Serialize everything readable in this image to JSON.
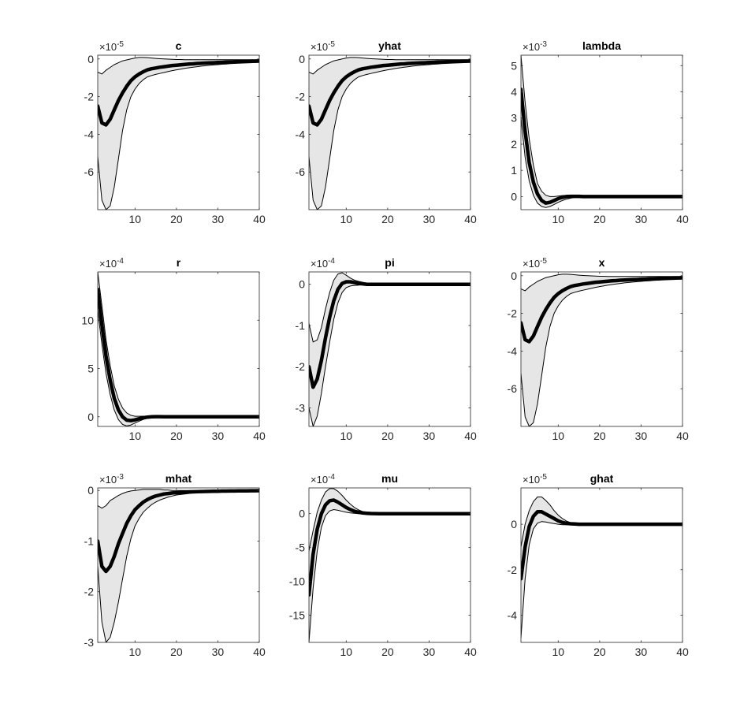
{
  "figure": {
    "background": "#ffffff",
    "axes_color": "#262626",
    "band_fill": "#e6e6e6",
    "bound_color": "#000000",
    "median_color": "#000000"
  },
  "chart_data": [
    {
      "id": "c",
      "type": "line",
      "title": "c",
      "exponent_label": "×10",
      "exponent_power": "-5",
      "scale": 1e-05,
      "xlim": [
        1,
        40
      ],
      "ylim": [
        -8,
        0.2
      ],
      "xticks": [
        10,
        20,
        30,
        40
      ],
      "yticks": [
        -6,
        -4,
        -2,
        0
      ],
      "x_step": 1,
      "median": [
        -2.5,
        -3.4,
        -3.5,
        -3.2,
        -2.7,
        -2.2,
        -1.8,
        -1.45,
        -1.15,
        -0.95,
        -0.8,
        -0.68,
        -0.58,
        -0.52,
        -0.48,
        -0.44,
        -0.41,
        -0.38,
        -0.35,
        -0.33,
        -0.31,
        -0.29,
        -0.27,
        -0.26,
        -0.24,
        -0.23,
        -0.22,
        -0.21,
        -0.2,
        -0.19,
        -0.18,
        -0.17,
        -0.16,
        -0.15,
        -0.14,
        -0.13,
        -0.13,
        -0.12,
        -0.12,
        -0.11
      ],
      "upper": [
        -0.7,
        -0.8,
        -0.6,
        -0.45,
        -0.3,
        -0.2,
        -0.1,
        -0.05,
        0.0,
        0.05,
        0.08,
        0.08,
        0.07,
        0.05,
        0.03,
        0.01,
        0.0,
        -0.01,
        -0.02,
        -0.03,
        -0.03,
        -0.04,
        -0.04,
        -0.04,
        -0.04,
        -0.04,
        -0.04,
        -0.04,
        -0.04,
        -0.04,
        -0.04,
        -0.04,
        -0.04,
        -0.04,
        -0.04,
        -0.04,
        -0.04,
        -0.04,
        -0.04,
        -0.04
      ],
      "lower": [
        -5.2,
        -7.5,
        -8.0,
        -7.8,
        -6.8,
        -5.3,
        -3.8,
        -2.7,
        -2.0,
        -1.6,
        -1.3,
        -1.1,
        -0.95,
        -0.88,
        -0.82,
        -0.77,
        -0.72,
        -0.67,
        -0.62,
        -0.58,
        -0.54,
        -0.5,
        -0.47,
        -0.44,
        -0.41,
        -0.38,
        -0.36,
        -0.34,
        -0.32,
        -0.3,
        -0.28,
        -0.27,
        -0.25,
        -0.24,
        -0.23,
        -0.22,
        -0.21,
        -0.2,
        -0.19,
        -0.18
      ]
    },
    {
      "id": "yhat",
      "type": "line",
      "title": "yhat",
      "exponent_label": "×10",
      "exponent_power": "-5",
      "scale": 1e-05,
      "xlim": [
        1,
        40
      ],
      "ylim": [
        -8,
        0.2
      ],
      "xticks": [
        10,
        20,
        30,
        40
      ],
      "yticks": [
        -6,
        -4,
        -2,
        0
      ],
      "x_step": 1,
      "median": [
        -2.5,
        -3.4,
        -3.5,
        -3.2,
        -2.7,
        -2.2,
        -1.8,
        -1.45,
        -1.15,
        -0.95,
        -0.8,
        -0.68,
        -0.58,
        -0.52,
        -0.48,
        -0.44,
        -0.41,
        -0.38,
        -0.35,
        -0.33,
        -0.31,
        -0.29,
        -0.27,
        -0.26,
        -0.24,
        -0.23,
        -0.22,
        -0.21,
        -0.2,
        -0.19,
        -0.18,
        -0.17,
        -0.16,
        -0.15,
        -0.14,
        -0.13,
        -0.13,
        -0.12,
        -0.12,
        -0.11
      ],
      "upper": [
        -0.7,
        -0.8,
        -0.6,
        -0.45,
        -0.3,
        -0.2,
        -0.1,
        -0.05,
        0.0,
        0.05,
        0.08,
        0.08,
        0.07,
        0.05,
        0.03,
        0.01,
        0.0,
        -0.01,
        -0.02,
        -0.03,
        -0.03,
        -0.04,
        -0.04,
        -0.04,
        -0.04,
        -0.04,
        -0.04,
        -0.04,
        -0.04,
        -0.04,
        -0.04,
        -0.04,
        -0.04,
        -0.04,
        -0.04,
        -0.04,
        -0.04,
        -0.04,
        -0.04,
        -0.04
      ],
      "lower": [
        -5.2,
        -7.5,
        -8.0,
        -7.8,
        -6.8,
        -5.3,
        -3.8,
        -2.7,
        -2.0,
        -1.6,
        -1.3,
        -1.1,
        -0.95,
        -0.88,
        -0.82,
        -0.77,
        -0.72,
        -0.67,
        -0.62,
        -0.58,
        -0.54,
        -0.5,
        -0.47,
        -0.44,
        -0.41,
        -0.38,
        -0.36,
        -0.34,
        -0.32,
        -0.3,
        -0.28,
        -0.27,
        -0.25,
        -0.24,
        -0.23,
        -0.22,
        -0.21,
        -0.2,
        -0.19,
        -0.18
      ]
    },
    {
      "id": "lambda",
      "type": "line",
      "title": "lambda",
      "exponent_label": "×10",
      "exponent_power": "-3",
      "scale": 0.001,
      "xlim": [
        1,
        40
      ],
      "ylim": [
        -0.5,
        5.4
      ],
      "xticks": [
        10,
        20,
        30,
        40
      ],
      "yticks": [
        0,
        1,
        2,
        3,
        4,
        5
      ],
      "x_step": 1,
      "median": [
        4.1,
        2.5,
        1.3,
        0.55,
        0.1,
        -0.15,
        -0.25,
        -0.22,
        -0.15,
        -0.08,
        -0.03,
        0.0,
        0.01,
        0.01,
        0.01,
        0.0,
        0,
        0,
        0,
        0,
        0,
        0,
        0,
        0,
        0,
        0,
        0,
        0,
        0,
        0,
        0,
        0,
        0,
        0,
        0,
        0,
        0,
        0,
        0,
        0
      ],
      "upper": [
        5.4,
        3.6,
        2.2,
        1.2,
        0.5,
        0.2,
        0.05,
        0.0,
        0.0,
        0.02,
        0.04,
        0.05,
        0.05,
        0.04,
        0.03,
        0.02,
        0.01,
        0.0,
        0,
        0,
        0,
        0,
        0,
        0,
        0,
        0,
        0,
        0,
        0,
        0,
        0,
        0,
        0,
        0,
        0,
        0,
        0,
        0,
        0,
        0
      ],
      "lower": [
        3.0,
        1.5,
        0.6,
        0.05,
        -0.25,
        -0.38,
        -0.42,
        -0.38,
        -0.3,
        -0.22,
        -0.15,
        -0.1,
        -0.06,
        -0.03,
        -0.02,
        -0.01,
        0,
        0,
        0,
        0,
        0,
        0,
        0,
        0,
        0,
        0,
        0,
        0,
        0,
        0,
        0,
        0,
        0,
        0,
        0,
        0,
        0,
        0,
        0,
        0
      ]
    },
    {
      "id": "r",
      "type": "line",
      "title": "r",
      "exponent_label": "×10",
      "exponent_power": "-4",
      "scale": 0.0001,
      "xlim": [
        1,
        40
      ],
      "ylim": [
        -1,
        15
      ],
      "xticks": [
        10,
        20,
        30,
        40
      ],
      "yticks": [
        0,
        5,
        10
      ],
      "x_step": 1,
      "median": [
        13.2,
        9.5,
        6.3,
        3.8,
        1.9,
        0.7,
        0.0,
        -0.35,
        -0.4,
        -0.32,
        -0.2,
        -0.1,
        -0.04,
        0.0,
        0.01,
        0.01,
        0,
        0,
        0,
        0,
        0,
        0,
        0,
        0,
        0,
        0,
        0,
        0,
        0,
        0,
        0,
        0,
        0,
        0,
        0,
        0,
        0,
        0,
        0,
        0
      ],
      "upper": [
        15.0,
        11.5,
        8.0,
        5.3,
        3.2,
        1.8,
        0.9,
        0.4,
        0.15,
        0.05,
        0.05,
        0.06,
        0.06,
        0.05,
        0.04,
        0.03,
        0.02,
        0.01,
        0,
        0,
        0,
        0,
        0,
        0,
        0,
        0,
        0,
        0,
        0,
        0,
        0,
        0,
        0,
        0,
        0,
        0,
        0,
        0,
        0,
        0
      ],
      "lower": [
        11.0,
        7.5,
        4.5,
        2.3,
        0.7,
        -0.3,
        -0.8,
        -0.95,
        -0.85,
        -0.65,
        -0.45,
        -0.28,
        -0.15,
        -0.07,
        -0.03,
        -0.01,
        0,
        0,
        0,
        0,
        0,
        0,
        0,
        0,
        0,
        0,
        0,
        0,
        0,
        0,
        0,
        0,
        0,
        0,
        0,
        0,
        0,
        0,
        0,
        0
      ]
    },
    {
      "id": "pi",
      "type": "line",
      "title": "pi",
      "exponent_label": "×10",
      "exponent_power": "-4",
      "scale": 0.0001,
      "xlim": [
        1,
        40
      ],
      "ylim": [
        -3.45,
        0.3
      ],
      "xticks": [
        10,
        20,
        30,
        40
      ],
      "yticks": [
        -3,
        -2,
        -1,
        0
      ],
      "x_step": 1,
      "median": [
        -2.0,
        -2.5,
        -2.3,
        -1.85,
        -1.3,
        -0.8,
        -0.4,
        -0.12,
        0.02,
        0.06,
        0.06,
        0.04,
        0.02,
        0.01,
        0.0,
        0,
        0,
        0,
        0,
        0,
        0,
        0,
        0,
        0,
        0,
        0,
        0,
        0,
        0,
        0,
        0,
        0,
        0,
        0,
        0,
        0,
        0,
        0,
        0,
        0
      ],
      "upper": [
        -0.95,
        -1.4,
        -1.35,
        -1.05,
        -0.6,
        -0.2,
        0.1,
        0.25,
        0.28,
        0.22,
        0.15,
        0.1,
        0.07,
        0.05,
        0.03,
        0.02,
        0.01,
        0,
        0,
        0,
        0,
        0,
        0,
        0,
        0,
        0,
        0,
        0,
        0,
        0,
        0,
        0,
        0,
        0,
        0,
        0,
        0,
        0,
        0,
        0
      ],
      "lower": [
        -3.0,
        -3.45,
        -3.2,
        -2.65,
        -2.0,
        -1.4,
        -0.85,
        -0.45,
        -0.2,
        -0.08,
        -0.04,
        -0.03,
        -0.02,
        -0.01,
        0,
        0,
        0,
        0,
        0,
        0,
        0,
        0,
        0,
        0,
        0,
        0,
        0,
        0,
        0,
        0,
        0,
        0,
        0,
        0,
        0,
        0,
        0,
        0,
        0,
        0
      ]
    },
    {
      "id": "x",
      "type": "line",
      "title": "x",
      "exponent_label": "×10",
      "exponent_power": "-5",
      "scale": 1e-05,
      "xlim": [
        1,
        40
      ],
      "ylim": [
        -8,
        0.2
      ],
      "xticks": [
        10,
        20,
        30,
        40
      ],
      "yticks": [
        -6,
        -4,
        -2,
        0
      ],
      "x_step": 1,
      "median": [
        -2.5,
        -3.4,
        -3.5,
        -3.2,
        -2.7,
        -2.2,
        -1.8,
        -1.45,
        -1.15,
        -0.95,
        -0.8,
        -0.68,
        -0.58,
        -0.52,
        -0.48,
        -0.44,
        -0.41,
        -0.38,
        -0.35,
        -0.33,
        -0.31,
        -0.29,
        -0.27,
        -0.26,
        -0.24,
        -0.23,
        -0.22,
        -0.21,
        -0.2,
        -0.19,
        -0.18,
        -0.17,
        -0.16,
        -0.15,
        -0.14,
        -0.13,
        -0.13,
        -0.12,
        -0.12,
        -0.11
      ],
      "upper": [
        -0.7,
        -0.8,
        -0.6,
        -0.45,
        -0.3,
        -0.2,
        -0.1,
        -0.05,
        0.0,
        0.05,
        0.08,
        0.08,
        0.07,
        0.05,
        0.03,
        0.01,
        0.0,
        -0.01,
        -0.02,
        -0.03,
        -0.03,
        -0.04,
        -0.04,
        -0.04,
        -0.04,
        -0.04,
        -0.04,
        -0.04,
        -0.04,
        -0.04,
        -0.04,
        -0.04,
        -0.04,
        -0.04,
        -0.04,
        -0.04,
        -0.04,
        -0.04,
        -0.04,
        -0.04
      ],
      "lower": [
        -5.2,
        -7.5,
        -8.0,
        -7.8,
        -6.8,
        -5.3,
        -3.8,
        -2.7,
        -2.0,
        -1.6,
        -1.3,
        -1.1,
        -0.95,
        -0.88,
        -0.82,
        -0.77,
        -0.72,
        -0.67,
        -0.62,
        -0.58,
        -0.54,
        -0.5,
        -0.47,
        -0.44,
        -0.41,
        -0.38,
        -0.36,
        -0.34,
        -0.32,
        -0.3,
        -0.28,
        -0.27,
        -0.25,
        -0.24,
        -0.23,
        -0.22,
        -0.21,
        -0.2,
        -0.19,
        -0.18
      ]
    },
    {
      "id": "mhat",
      "type": "line",
      "title": "mhat",
      "exponent_label": "×10",
      "exponent_power": "-3",
      "scale": 0.001,
      "xlim": [
        1,
        40
      ],
      "ylim": [
        -3,
        0.05
      ],
      "xticks": [
        10,
        20,
        30,
        40
      ],
      "yticks": [
        -3,
        -2,
        -1,
        0
      ],
      "x_step": 1,
      "median": [
        -1.0,
        -1.5,
        -1.6,
        -1.5,
        -1.3,
        -1.05,
        -0.85,
        -0.65,
        -0.5,
        -0.38,
        -0.3,
        -0.23,
        -0.18,
        -0.14,
        -0.11,
        -0.09,
        -0.07,
        -0.06,
        -0.05,
        -0.045,
        -0.04,
        -0.035,
        -0.03,
        -0.028,
        -0.025,
        -0.022,
        -0.02,
        -0.018,
        -0.016,
        -0.015,
        -0.013,
        -0.012,
        -0.011,
        -0.01,
        -0.009,
        -0.008,
        -0.007,
        -0.006,
        -0.006,
        -0.005
      ],
      "upper": [
        -0.3,
        -0.35,
        -0.3,
        -0.2,
        -0.15,
        -0.1,
        -0.06,
        -0.03,
        -0.01,
        0.0,
        0.01,
        0.02,
        0.02,
        0.02,
        0.02,
        0.02,
        0.01,
        0.01,
        0.0,
        0.0,
        0,
        0,
        0,
        0,
        0,
        0,
        0,
        0,
        0,
        0,
        0,
        0,
        0,
        0,
        0,
        0,
        0,
        0,
        0,
        0
      ],
      "lower": [
        -1.5,
        -2.6,
        -3.0,
        -2.9,
        -2.6,
        -2.2,
        -1.75,
        -1.3,
        -0.95,
        -0.7,
        -0.55,
        -0.43,
        -0.35,
        -0.28,
        -0.23,
        -0.19,
        -0.16,
        -0.13,
        -0.11,
        -0.09,
        -0.08,
        -0.07,
        -0.06,
        -0.05,
        -0.045,
        -0.04,
        -0.035,
        -0.03,
        -0.028,
        -0.026,
        -0.024,
        -0.022,
        -0.02,
        -0.018,
        -0.016,
        -0.015,
        -0.014,
        -0.013,
        -0.012,
        -0.011
      ]
    },
    {
      "id": "mu",
      "type": "line",
      "title": "mu",
      "exponent_label": "×10",
      "exponent_power": "-4",
      "scale": 0.0001,
      "xlim": [
        1,
        40
      ],
      "ylim": [
        -19,
        3.8
      ],
      "xticks": [
        10,
        20,
        30,
        40
      ],
      "yticks": [
        -15,
        -10,
        -5,
        0
      ],
      "x_step": 1,
      "median": [
        -12.0,
        -6.0,
        -2.3,
        0.0,
        1.3,
        1.9,
        2.0,
        1.7,
        1.3,
        0.9,
        0.6,
        0.35,
        0.2,
        0.1,
        0.05,
        0.02,
        0.01,
        0,
        0,
        0,
        0,
        0,
        0,
        0,
        0,
        0,
        0,
        0,
        0,
        0,
        0,
        0,
        0,
        0,
        0,
        0,
        0,
        0,
        0,
        0
      ],
      "upper": [
        -5.5,
        -2.5,
        0.2,
        2.0,
        3.2,
        3.7,
        3.7,
        3.3,
        2.7,
        2.0,
        1.4,
        0.9,
        0.55,
        0.3,
        0.15,
        0.07,
        0.03,
        0.01,
        0,
        0,
        0,
        0,
        0,
        0,
        0,
        0,
        0,
        0,
        0,
        0,
        0,
        0,
        0,
        0,
        0,
        0,
        0,
        0,
        0,
        0
      ],
      "lower": [
        -19.0,
        -11.0,
        -5.5,
        -2.0,
        -0.3,
        0.4,
        0.6,
        0.5,
        0.35,
        0.2,
        0.1,
        0.05,
        0.0,
        -0.02,
        -0.02,
        -0.01,
        0,
        0,
        0,
        0,
        0,
        0,
        0,
        0,
        0,
        0,
        0,
        0,
        0,
        0,
        0,
        0,
        0,
        0,
        0,
        0,
        0,
        0,
        0,
        0
      ]
    },
    {
      "id": "ghat",
      "type": "line",
      "title": "ghat",
      "exponent_label": "×10",
      "exponent_power": "-5",
      "scale": 1e-05,
      "xlim": [
        1,
        40
      ],
      "ylim": [
        -5.2,
        1.6
      ],
      "xticks": [
        10,
        20,
        30,
        40
      ],
      "yticks": [
        -4,
        -2,
        0
      ],
      "x_step": 1,
      "median": [
        -2.4,
        -1.0,
        -0.1,
        0.35,
        0.55,
        0.55,
        0.45,
        0.35,
        0.25,
        0.15,
        0.08,
        0.04,
        0.02,
        0.01,
        0.0,
        0,
        0,
        0,
        0,
        0,
        0,
        0,
        0,
        0,
        0,
        0,
        0,
        0,
        0,
        0,
        0,
        0,
        0,
        0,
        0,
        0,
        0,
        0,
        0,
        0
      ],
      "upper": [
        -1.0,
        0.0,
        0.6,
        1.0,
        1.2,
        1.2,
        1.05,
        0.85,
        0.6,
        0.4,
        0.25,
        0.14,
        0.07,
        0.03,
        0.01,
        0,
        0,
        0,
        0,
        0,
        0,
        0,
        0,
        0,
        0,
        0,
        0,
        0,
        0,
        0,
        0,
        0,
        0,
        0,
        0,
        0,
        0,
        0,
        0,
        0
      ],
      "lower": [
        -5.0,
        -2.4,
        -0.9,
        -0.2,
        0.05,
        0.12,
        0.1,
        0.06,
        0.03,
        0.0,
        -0.02,
        -0.02,
        -0.02,
        -0.01,
        0,
        0,
        0,
        0,
        0,
        0,
        0,
        0,
        0,
        0,
        0,
        0,
        0,
        0,
        0,
        0,
        0,
        0,
        0,
        0,
        0,
        0,
        0,
        0,
        0,
        0
      ]
    }
  ]
}
